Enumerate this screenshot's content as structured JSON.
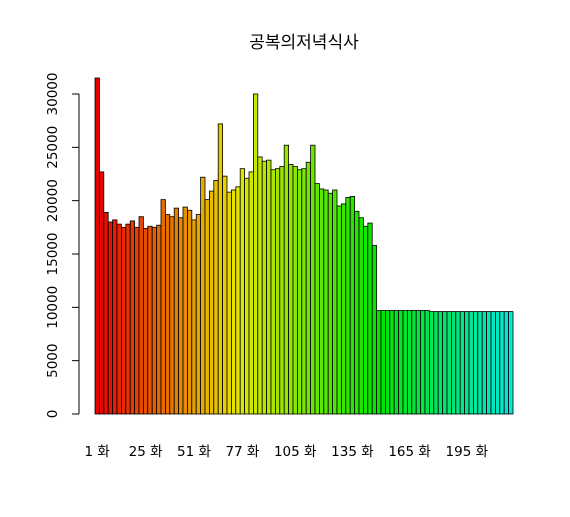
{
  "chart_data": {
    "type": "bar",
    "title": "공복의저녁식사",
    "xlabel": "",
    "ylabel": "",
    "ylim": [
      0,
      32000
    ],
    "yticks": [
      0,
      5000,
      10000,
      15000,
      20000,
      25000,
      30000
    ],
    "ytick_labels": [
      "0",
      "5000",
      "10000",
      "15000",
      "20000",
      "25000",
      "30000"
    ],
    "x_tick_labels": [
      {
        "index": 0,
        "label": "1 화"
      },
      {
        "index": 11,
        "label": "25 화"
      },
      {
        "index": 22,
        "label": "51 화"
      },
      {
        "index": 33,
        "label": "77 화"
      },
      {
        "index": 45,
        "label": "105 화"
      },
      {
        "index": 58,
        "label": "135 화"
      },
      {
        "index": 71,
        "label": "165 화"
      },
      {
        "index": 84,
        "label": "195 화"
      }
    ],
    "values": [
      31500,
      22700,
      18900,
      18000,
      18200,
      17800,
      17500,
      17800,
      18100,
      17500,
      18500,
      17400,
      17600,
      17500,
      17700,
      20100,
      18700,
      18500,
      19300,
      18400,
      19400,
      19100,
      18200,
      18700,
      22200,
      20100,
      20900,
      21900,
      27200,
      22300,
      20800,
      21000,
      21300,
      23000,
      22100,
      22700,
      30000,
      24100,
      23700,
      23800,
      22900,
      23000,
      23200,
      25200,
      23400,
      23200,
      22900,
      23000,
      23600,
      25200,
      21600,
      21100,
      21000,
      20700,
      21000,
      19500,
      19700,
      20300,
      20400,
      19000,
      18400,
      17600,
      17900,
      15800,
      9700,
      9700,
      9700,
      9700,
      9700,
      9700,
      9700,
      9700,
      9700,
      9700,
      9700,
      9700,
      9600,
      9600,
      9600,
      9600,
      9600,
      9600,
      9600,
      9600,
      9600,
      9600,
      9600,
      9600,
      9600,
      9600,
      9600,
      9600,
      9600,
      9600,
      9600
    ],
    "colors": "rainbow (red to cyan)",
    "grid": false,
    "legend": "none"
  }
}
